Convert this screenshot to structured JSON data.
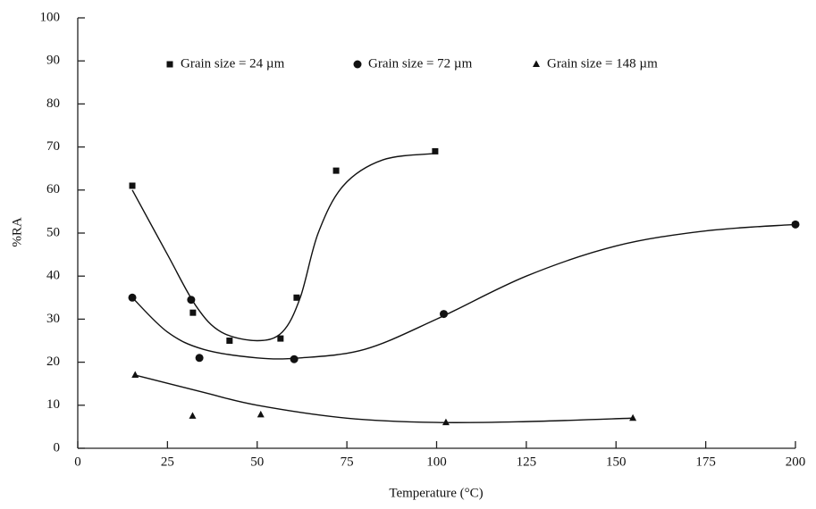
{
  "chart_data": {
    "type": "scatter",
    "xlabel": "Temperature (°C)",
    "ylabel": "%RA",
    "xlim": [
      0,
      200
    ],
    "xticks": [
      0,
      25,
      50,
      75,
      100,
      125,
      150,
      175,
      200
    ],
    "ylim": [
      0,
      100
    ],
    "yticks": [
      0,
      10,
      20,
      30,
      40,
      50,
      60,
      70,
      80,
      90,
      100
    ],
    "series": [
      {
        "name": "Grain size = 24 µm",
        "marker": "square",
        "color": "#111111",
        "x": [
          15.2,
          32.1,
          42.3,
          56.5,
          61,
          72,
          99.6
        ],
        "y": [
          61,
          31.5,
          25,
          25.5,
          35,
          64.5,
          69
        ],
        "curve": {
          "x": [
            15.2,
            25,
            33,
            40,
            50,
            57,
            62,
            67,
            74,
            85,
            99.6
          ],
          "y": [
            60,
            45,
            33,
            27,
            25,
            27,
            35,
            50,
            61,
            67,
            68.5
          ]
        }
      },
      {
        "name": "Grain size = 72 µm",
        "marker": "circle",
        "color": "#111111",
        "x": [
          15.2,
          31.6,
          33.9,
          60.3,
          102,
          200
        ],
        "y": [
          35,
          34.5,
          21,
          20.7,
          31.2,
          52
        ],
        "curve": {
          "x": [
            15.2,
            25,
            35,
            50,
            62,
            80,
            100,
            125,
            150,
            175,
            200
          ],
          "y": [
            35,
            27,
            23,
            21,
            21,
            23,
            30,
            40,
            47,
            50.5,
            52
          ]
        }
      },
      {
        "name": "Grain size = 148 µm",
        "marker": "triangle",
        "color": "#111111",
        "x": [
          16,
          32,
          51,
          102.6,
          154.7
        ],
        "y": [
          17,
          7.5,
          7.8,
          6,
          7
        ],
        "curve": {
          "x": [
            16,
            35,
            50,
            75,
            100,
            125,
            154.7
          ],
          "y": [
            17,
            13,
            10,
            7,
            6,
            6.2,
            7
          ]
        }
      }
    ]
  }
}
